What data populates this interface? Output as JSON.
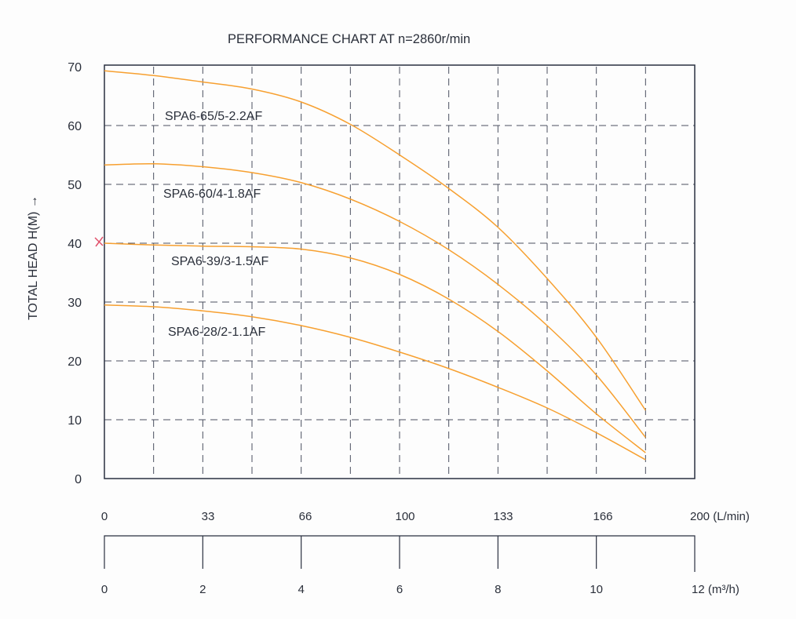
{
  "chart_data": {
    "type": "line",
    "title": "PERFORMANCE CHART AT  n=2860r/min",
    "ylabel": "TOTAL HEAD H(M) →",
    "xlabel_top_unit": "(L/min)",
    "xlabel_bottom_unit": "(m³/h)",
    "ylim": [
      0,
      70
    ],
    "xlim": [
      0,
      12
    ],
    "grid": true,
    "y_ticks": [
      "0",
      "10",
      "20",
      "30",
      "40",
      "50",
      "60",
      "70"
    ],
    "x_ticks_lmin": [
      "0",
      "33",
      "66",
      "100",
      "133",
      "166",
      "200 (L/min)"
    ],
    "x_ticks_m3h": [
      "0",
      "2",
      "4",
      "6",
      "8",
      "10",
      "12 (m³/h)"
    ],
    "x": [
      0,
      1,
      2,
      3,
      4,
      5,
      6,
      7,
      8,
      9,
      10,
      11
    ],
    "series": [
      {
        "name": "SPA6-65/5-2.2AF",
        "values": [
          69.3,
          68.5,
          67.4,
          66.2,
          64,
          60.2,
          55,
          49.3,
          42.7,
          34,
          24,
          11.6
        ]
      },
      {
        "name": "SPA6-60/4-1.8AF",
        "values": [
          53.3,
          53.5,
          53,
          52,
          50.3,
          47.5,
          43.7,
          38.9,
          33,
          26,
          17.6,
          7
        ]
      },
      {
        "name": "SPA6-39/3-1.5AF",
        "values": [
          40,
          39.7,
          39.5,
          39.4,
          39,
          37.5,
          34.7,
          30.5,
          25,
          18.3,
          11,
          4.4
        ]
      },
      {
        "name": "SPA6-28/2-1.1AF",
        "values": [
          29.5,
          29.2,
          28.5,
          27.5,
          26,
          24,
          21.5,
          18.7,
          15.5,
          12,
          7.8,
          3.2
        ]
      }
    ],
    "colors": {
      "curve": "#f7a030",
      "grid": "#4a5060",
      "frame": "#2a3040"
    }
  }
}
